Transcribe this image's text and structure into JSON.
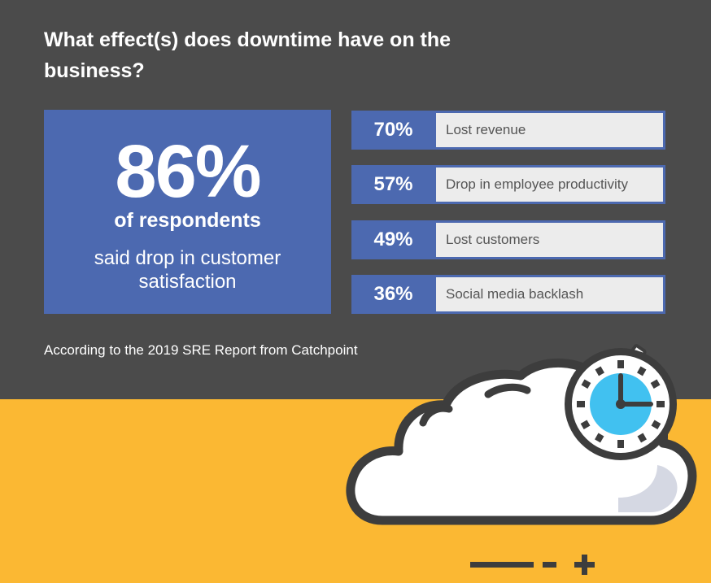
{
  "title": "What effect(s) does downtime have on the business?",
  "highlight": {
    "value": "86%",
    "subtitle": "of respondents",
    "description": "said drop in customer satisfaction"
  },
  "stats": [
    {
      "percent": "70%",
      "label": "Lost revenue"
    },
    {
      "percent": "57%",
      "label": "Drop in employee productivity"
    },
    {
      "percent": "49%",
      "label": "Lost customers"
    },
    {
      "percent": "36%",
      "label": "Social media backlash"
    }
  ],
  "source": "According to the 2019 SRE Report from Catchpoint",
  "illustration": {
    "icons": [
      "cloud-icon",
      "stopwatch-icon",
      "minus-icon",
      "plus-icon"
    ],
    "colors": {
      "top_background": "#4b4b4b",
      "bottom_background": "#fbb833",
      "accent_blue": "#4c69b0",
      "clock_face": "#41c1f0",
      "outline": "#3d3d3d"
    }
  }
}
